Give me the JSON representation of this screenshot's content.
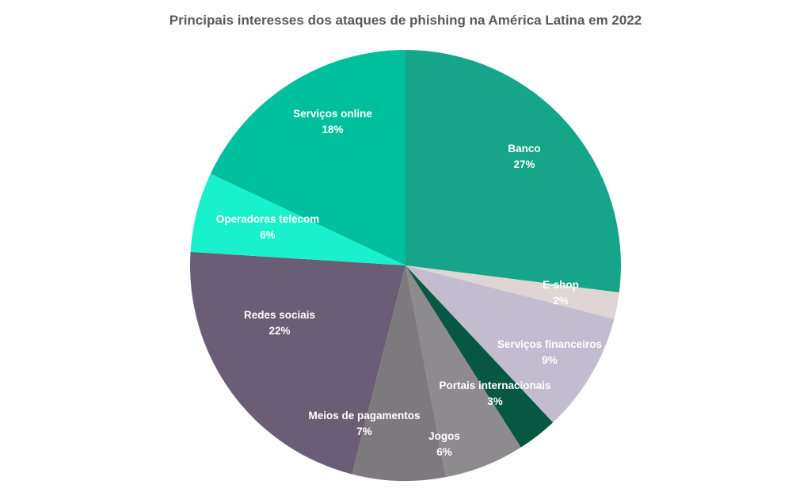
{
  "chart_data": {
    "type": "pie",
    "title": "Principais interesses dos ataques de phishing na América Latina em 2022",
    "slices": [
      {
        "label": "Banco",
        "value": 27,
        "display": "27%",
        "color": "#16a589"
      },
      {
        "label": "E-shop",
        "value": 2,
        "display": "2%",
        "color": "#dfd5d5"
      },
      {
        "label": "Serviços financeiros",
        "value": 9,
        "display": "9%",
        "color": "#c3bccf"
      },
      {
        "label": "Portais internacionais",
        "value": 3,
        "display": "3%",
        "color": "#075842"
      },
      {
        "label": "Jogos",
        "value": 6,
        "display": "6%",
        "color": "#8e8b8e"
      },
      {
        "label": "Meios de pagamentos",
        "value": 7,
        "display": "7%",
        "color": "#7d7a7e"
      },
      {
        "label": "Redes sociais",
        "value": 22,
        "display": "22%",
        "color": "#6a5e77"
      },
      {
        "label": "Operadoras  telecom",
        "value": 6,
        "display": "6%",
        "color": "#19f0cc"
      },
      {
        "label": "Serviços online",
        "value": 18,
        "display": "18%",
        "color": "#00bf9c"
      }
    ]
  }
}
